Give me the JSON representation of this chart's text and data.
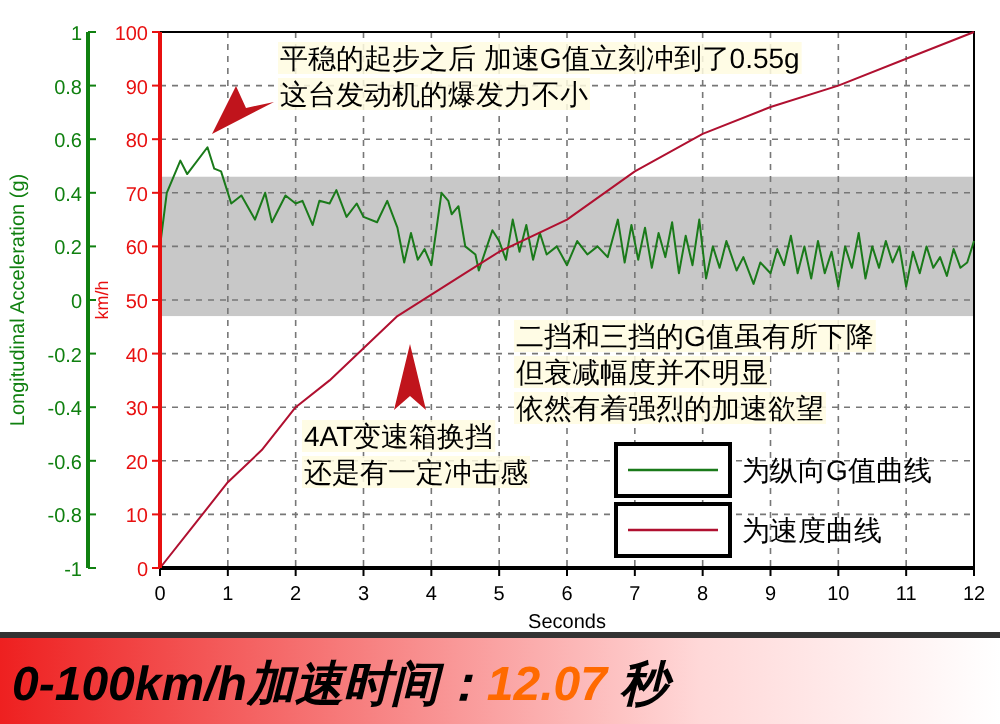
{
  "chart_data": {
    "type": "line",
    "title": "0-100km/h加速时间：12.07 秒",
    "xlabel": "Seconds",
    "ylabel": "km/h",
    "y2label": "Longitudinal Acceleration (g)",
    "xlim": [
      0,
      12
    ],
    "xticks": [
      0,
      1,
      2,
      3,
      4,
      5,
      6,
      7,
      8,
      9,
      10,
      11,
      12
    ],
    "ylim": [
      0,
      100
    ],
    "yticks": [
      0,
      10,
      20,
      30,
      40,
      50,
      60,
      70,
      80,
      90,
      100
    ],
    "y2lim": [
      -1,
      1
    ],
    "y2ticks": [
      -1,
      -0.8,
      -0.6,
      -0.4,
      -0.2,
      0,
      0.2,
      0.4,
      0.6,
      0.8,
      1
    ],
    "grid": true,
    "legend": "bottom right",
    "line_style": "solid",
    "series": [
      {
        "name": "为纵向G值曲线",
        "color": "#1a7a1a",
        "axis": "y2",
        "x": [
          0,
          0.1,
          0.3,
          0.4,
          0.7,
          0.8,
          0.9,
          1.05,
          1.2,
          1.4,
          1.55,
          1.65,
          1.85,
          2.0,
          2.1,
          2.25,
          2.35,
          2.5,
          2.6,
          2.75,
          2.9,
          3.0,
          3.2,
          3.35,
          3.5,
          3.6,
          3.7,
          3.8,
          3.9,
          4.0,
          4.15,
          4.25,
          4.3,
          4.4,
          4.5,
          4.65,
          4.7,
          4.9,
          5.0,
          5.1,
          5.2,
          5.3,
          5.4,
          5.5,
          5.6,
          5.7,
          5.85,
          6.0,
          6.15,
          6.3,
          6.45,
          6.6,
          6.75,
          6.85,
          6.95,
          7.05,
          7.15,
          7.25,
          7.35,
          7.45,
          7.55,
          7.65,
          7.75,
          7.85,
          7.95,
          8.05,
          8.15,
          8.25,
          8.35,
          8.5,
          8.6,
          8.75,
          8.85,
          9.0,
          9.1,
          9.2,
          9.3,
          9.4,
          9.5,
          9.6,
          9.7,
          9.8,
          9.9,
          10.0,
          10.1,
          10.2,
          10.3,
          10.4,
          10.5,
          10.6,
          10.7,
          10.8,
          10.9,
          11.0,
          11.1,
          11.2,
          11.3,
          11.4,
          11.5,
          11.6,
          11.7,
          11.8,
          11.9,
          12.0
        ],
        "values": [
          0.2,
          0.4,
          0.52,
          0.47,
          0.57,
          0.49,
          0.48,
          0.36,
          0.39,
          0.3,
          0.4,
          0.29,
          0.39,
          0.36,
          0.37,
          0.28,
          0.37,
          0.36,
          0.41,
          0.31,
          0.36,
          0.31,
          0.29,
          0.37,
          0.27,
          0.14,
          0.25,
          0.15,
          0.19,
          0.13,
          0.4,
          0.37,
          0.32,
          0.35,
          0.2,
          0.17,
          0.11,
          0.26,
          0.22,
          0.15,
          0.3,
          0.18,
          0.28,
          0.15,
          0.25,
          0.17,
          0.2,
          0.13,
          0.22,
          0.17,
          0.2,
          0.16,
          0.3,
          0.14,
          0.28,
          0.15,
          0.27,
          0.12,
          0.25,
          0.16,
          0.29,
          0.1,
          0.24,
          0.13,
          0.3,
          0.08,
          0.2,
          0.12,
          0.22,
          0.11,
          0.16,
          0.06,
          0.14,
          0.1,
          0.19,
          0.13,
          0.24,
          0.1,
          0.2,
          0.08,
          0.22,
          0.1,
          0.18,
          0.05,
          0.2,
          0.12,
          0.25,
          0.08,
          0.2,
          0.12,
          0.22,
          0.14,
          0.2,
          0.05,
          0.18,
          0.1,
          0.2,
          0.12,
          0.16,
          0.09,
          0.19,
          0.12,
          0.14,
          0.22
        ]
      },
      {
        "name": "为速度曲线",
        "color": "#b01030",
        "x": [
          0,
          0.5,
          1,
          1.5,
          2,
          2.5,
          3,
          3.5,
          4,
          4.5,
          5,
          6,
          7,
          8,
          9,
          10,
          11,
          12
        ],
        "values": [
          0,
          8,
          16,
          22,
          30,
          35,
          41,
          47,
          51,
          55,
          59,
          65,
          74,
          81,
          86,
          90,
          95,
          100
        ]
      }
    ],
    "bands": [
      {
        "axis": "y2",
        "from": -0.06,
        "to": 0.46,
        "color": "#c8c8c8"
      }
    ],
    "annotations": [
      "平稳的起步之后 加速G值立刻冲到了0.55g",
      "这台发动机的爆发力不小",
      "4AT变速箱换挡",
      "还是有一定冲击感",
      "二挡和三挡的G值虽有所下降",
      "但衰减幅度并不明显",
      "依然有着强烈的加速欲望"
    ]
  }
}
